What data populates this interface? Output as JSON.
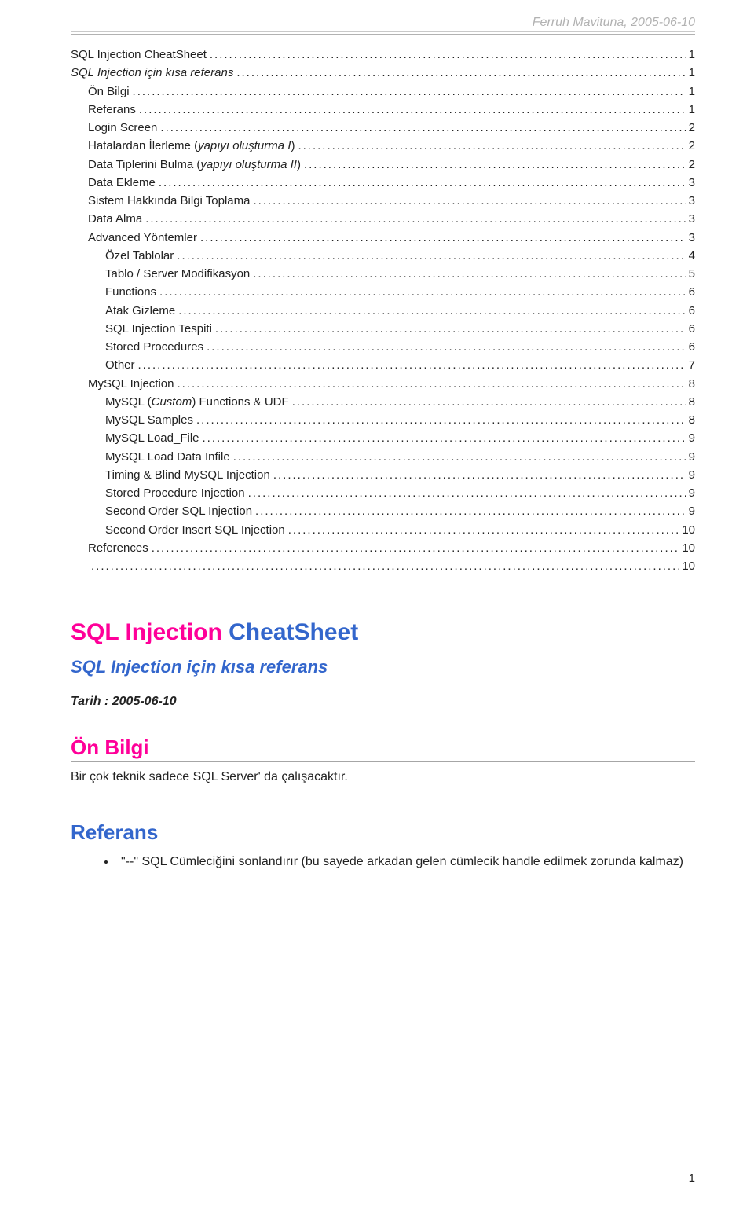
{
  "header": {
    "author": "Ferruh Mavituna",
    "date": "2005-06-10",
    "header_color": "#b2b2b2",
    "border_color": "#b2b2b2"
  },
  "colors": {
    "pink": "#ff0099",
    "blue": "#3366cc",
    "text": "#222222",
    "background": "#ffffff"
  },
  "toc": [
    {
      "label": "SQL Injection CheatSheet",
      "page": "1",
      "indent": 0,
      "italic": false
    },
    {
      "label": "SQL Injection için kısa referans",
      "page": "1",
      "indent": 0,
      "italic": true
    },
    {
      "label": "Ön Bilgi",
      "page": "1",
      "indent": 1,
      "italic": false
    },
    {
      "label": "Referans",
      "page": "1",
      "indent": 1,
      "italic": false
    },
    {
      "label": "Login Screen",
      "page": "2",
      "indent": 1,
      "italic": false
    },
    {
      "label_prefix": "Hatalardan İlerleme (",
      "label_italic": "yapıyı oluşturma I",
      "label_suffix": ")",
      "page": "2",
      "indent": 1,
      "italic": false,
      "composite": true
    },
    {
      "label_prefix": "Data Tiplerini Bulma (",
      "label_italic": "yapıyı oluşturma II",
      "label_suffix": ")",
      "page": "2",
      "indent": 1,
      "italic": false,
      "composite": true
    },
    {
      "label": "Data Ekleme",
      "page": "3",
      "indent": 1,
      "italic": false
    },
    {
      "label": "Sistem Hakkında Bilgi Toplama",
      "page": "3",
      "indent": 1,
      "italic": false
    },
    {
      "label": "Data Alma",
      "page": "3",
      "indent": 1,
      "italic": false
    },
    {
      "label": "Advanced Yöntemler",
      "page": "3",
      "indent": 1,
      "italic": false
    },
    {
      "label": "Özel Tablolar",
      "page": "4",
      "indent": 2,
      "italic": false
    },
    {
      "label": "Tablo / Server  Modifikasyon",
      "page": "5",
      "indent": 2,
      "italic": false
    },
    {
      "label": "Functions",
      "page": "6",
      "indent": 2,
      "italic": false
    },
    {
      "label": "Atak Gizleme",
      "page": "6",
      "indent": 2,
      "italic": false
    },
    {
      "label": "SQL Injection Tespiti",
      "page": "6",
      "indent": 2,
      "italic": false
    },
    {
      "label": "Stored Procedures",
      "page": "6",
      "indent": 2,
      "italic": false
    },
    {
      "label": "Other",
      "page": "7",
      "indent": 2,
      "italic": false
    },
    {
      "label": "MySQL Injection",
      "page": "8",
      "indent": 1,
      "italic": false
    },
    {
      "label_prefix": "MySQL (",
      "label_italic": "Custom",
      "label_suffix": ") Functions & UDF",
      "page": "8",
      "indent": 2,
      "italic": false,
      "composite": true
    },
    {
      "label": "MySQL Samples",
      "page": "8",
      "indent": 2,
      "italic": false
    },
    {
      "label": "MySQL Load_File",
      "page": "9",
      "indent": 2,
      "italic": false
    },
    {
      "label": "MySQL Load Data Infile",
      "page": "9",
      "indent": 2,
      "italic": false
    },
    {
      "label": "Timing & Blind MySQL Injection",
      "page": "9",
      "indent": 2,
      "italic": false
    },
    {
      "label": "Stored Procedure Injection",
      "page": "9",
      "indent": 2,
      "italic": false
    },
    {
      "label": "Second Order SQL Injection",
      "page": "9",
      "indent": 2,
      "italic": false
    },
    {
      "label": "Second Order Insert SQL Injection",
      "page": "10",
      "indent": 2,
      "italic": false
    },
    {
      "label": "References",
      "page": "10",
      "indent": 1,
      "italic": false
    },
    {
      "label": "",
      "page": "10",
      "indent": 1,
      "italic": false
    }
  ],
  "main": {
    "h1_part1": "SQL Injection ",
    "h1_part2": "CheatSheet",
    "subtitle": "SQL Injection için kısa referans",
    "tarih_label": "Tarih : ",
    "tarih_value": "2005-06-10",
    "onbilgi_title": "Ön Bilgi",
    "onbilgi_text": "Bir çok teknik sadece SQL Server' da çalışacaktır.",
    "referans_title": "Referans",
    "referans_bullet": "\"--\"    SQL Cümleciğini sonlandırır (bu sayede arkadan gelen cümlecik handle edilmek zorunda kalmaz)"
  },
  "page_number": "1"
}
